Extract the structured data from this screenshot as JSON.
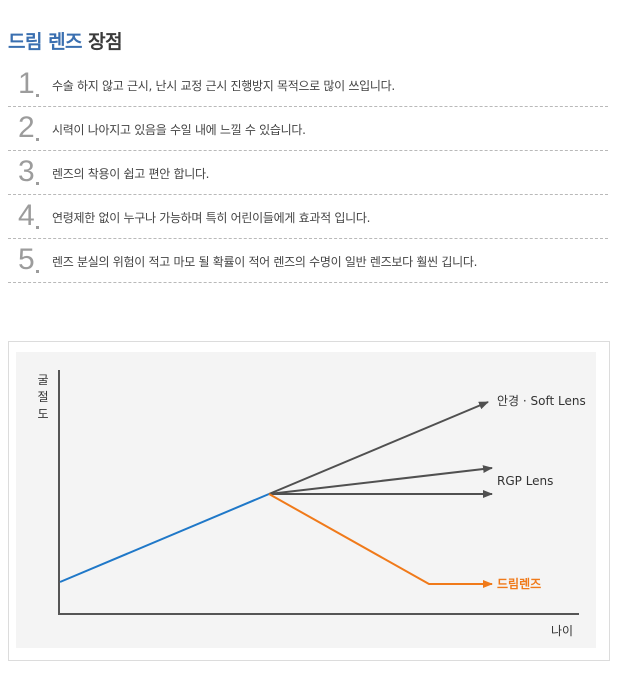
{
  "title": {
    "accent": "드림 렌즈",
    "rest": " 장점"
  },
  "items": [
    {
      "number": "1",
      "text": "수술 하지 않고 근시, 난시 교정 근시 진행방지 목적으로 많이 쓰입니다."
    },
    {
      "number": "2",
      "text": "시력이 나아지고 있음을 수일 내에 느낄 수 있습니다."
    },
    {
      "number": "3",
      "text": "렌즈의 착용이 쉽고 편안 합니다."
    },
    {
      "number": "4",
      "text": "연령제한 없이 누구나 가능하며 특히 어린이들에게 효과적 입니다."
    },
    {
      "number": "5",
      "text": "렌즈 분실의 위험이 적고 마모 될 확률이 적어 렌즈의 수명이 일반 렌즈보다 훨씬 깁니다."
    }
  ],
  "diagram": {
    "y_axis_label": [
      "굴",
      "절",
      "도"
    ],
    "x_axis_label": "나이",
    "labels": {
      "glasses_soft": "안경 · Soft Lens",
      "rgp": "RGP Lens",
      "dream": "드림렌즈"
    },
    "colors": {
      "base": "#1f78c8",
      "grey": "#505050",
      "dream": "#f07a1a"
    }
  }
}
